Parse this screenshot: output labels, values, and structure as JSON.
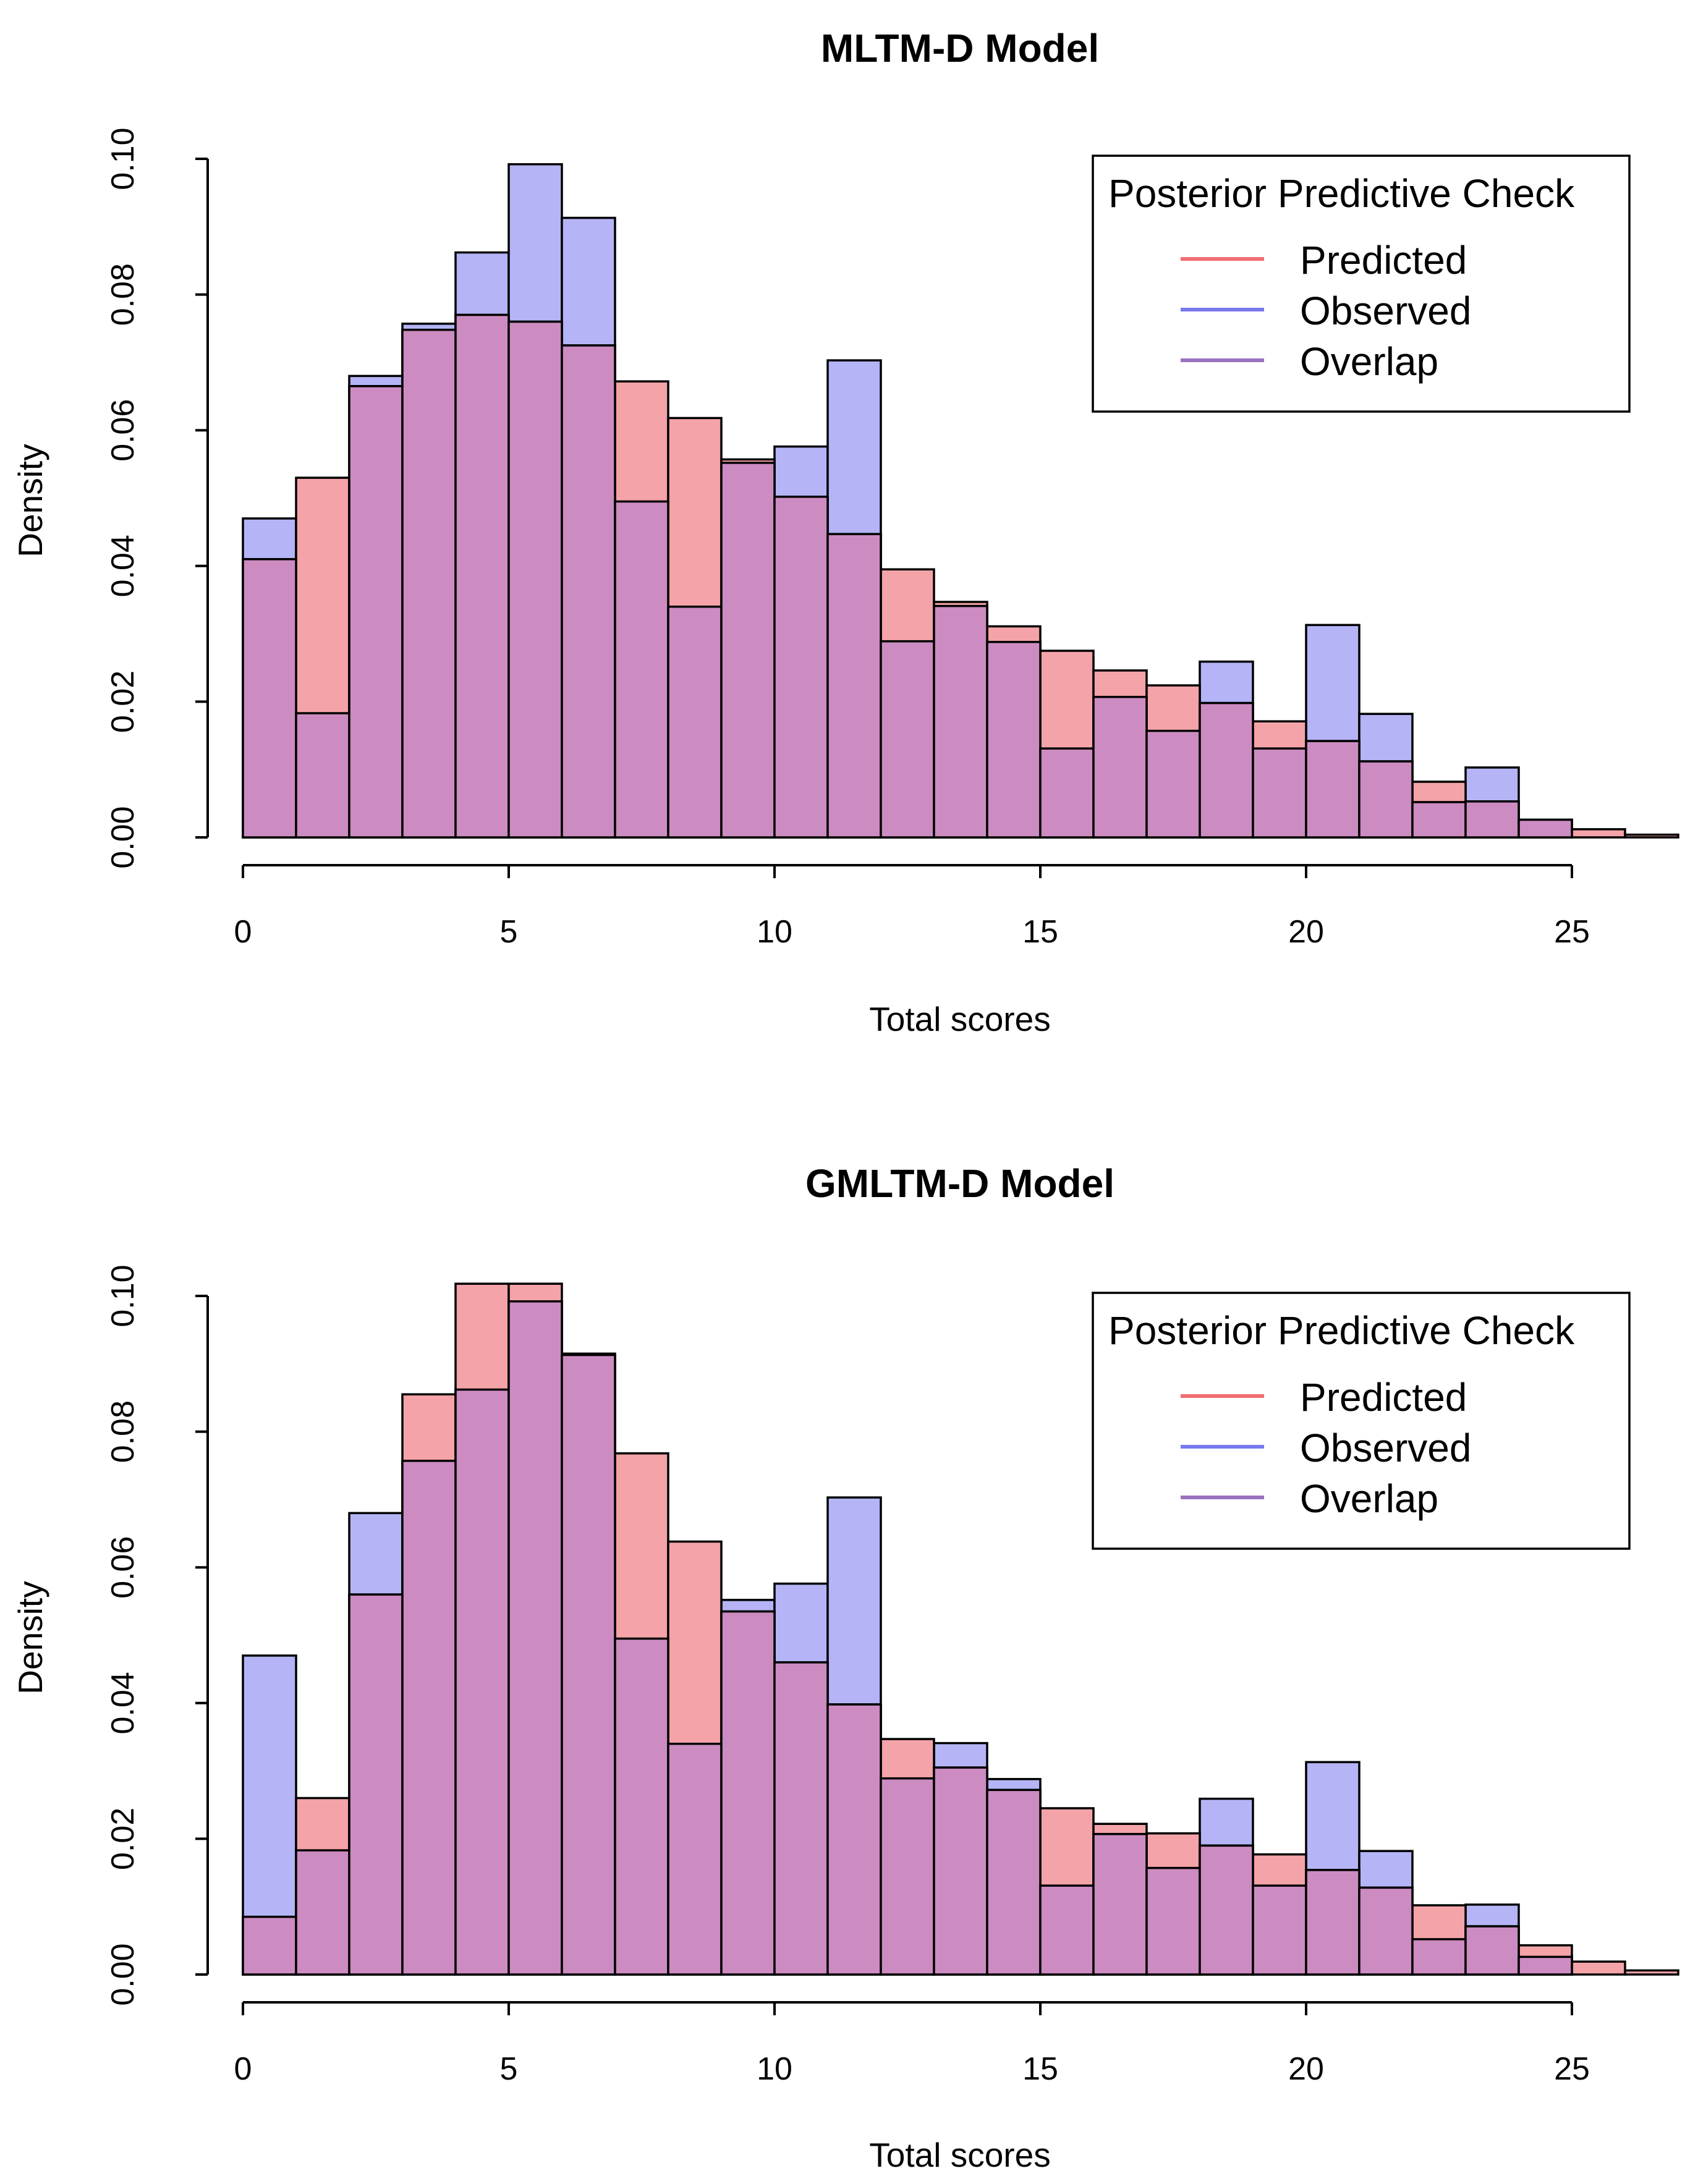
{
  "colors": {
    "predicted": "#f4a3a8",
    "observed": "#b4b4f6",
    "overlap": "#cc8cc1",
    "predicted_line": "#f06e72",
    "observed_line": "#7878ee",
    "overlap_line": "#9a72bf"
  },
  "chart_data": [
    {
      "type": "bar",
      "title": "MLTM-D Model",
      "xlabel": "Total scores",
      "ylabel": "Density",
      "xlim": [
        0,
        27
      ],
      "ylim": [
        0,
        0.1
      ],
      "bin_width": 1,
      "x_ticks": [
        "0",
        "5",
        "10",
        "15",
        "20",
        "25"
      ],
      "y_ticks": [
        "0.00",
        "0.02",
        "0.04",
        "0.06",
        "0.08",
        "0.10"
      ],
      "legend": {
        "title": "Posterior Predictive Check",
        "position": "top-right",
        "items": [
          "Predicted",
          "Observed",
          "Overlap"
        ]
      },
      "series": [
        {
          "name": "Predicted",
          "values": [
            0.041,
            0.053,
            0.0665,
            0.0748,
            0.077,
            0.076,
            0.0725,
            0.0672,
            0.0618,
            0.0557,
            0.0502,
            0.0447,
            0.0395,
            0.0347,
            0.0311,
            0.0275,
            0.0246,
            0.0224,
            0.0198,
            0.0171,
            0.0142,
            0.0112,
            0.0082,
            0.0053,
            0.0026,
            0.0012,
            0.0004
          ]
        },
        {
          "name": "Observed",
          "values": [
            0.047,
            0.0183,
            0.068,
            0.0757,
            0.0862,
            0.0992,
            0.0913,
            0.0495,
            0.034,
            0.0552,
            0.0576,
            0.0703,
            0.0289,
            0.0341,
            0.0288,
            0.0131,
            0.0207,
            0.0157,
            0.0259,
            0.0131,
            0.0313,
            0.0182,
            0.0052,
            0.0103,
            0.0026,
            0,
            0
          ]
        }
      ]
    },
    {
      "type": "bar",
      "title": "GMLTM-D Model",
      "xlabel": "Total scores",
      "ylabel": "Density",
      "xlim": [
        0,
        27
      ],
      "ylim": [
        0,
        0.1
      ],
      "bin_width": 1,
      "x_ticks": [
        "0",
        "5",
        "10",
        "15",
        "20",
        "25"
      ],
      "y_ticks": [
        "0.00",
        "0.02",
        "0.04",
        "0.06",
        "0.08",
        "0.10"
      ],
      "legend": {
        "title": "Posterior Predictive Check",
        "position": "top-right",
        "items": [
          "Predicted",
          "Observed",
          "Overlap"
        ]
      },
      "series": [
        {
          "name": "Predicted",
          "values": [
            0.0085,
            0.026,
            0.056,
            0.0855,
            0.1018,
            0.1018,
            0.0915,
            0.0768,
            0.0638,
            0.0535,
            0.046,
            0.0398,
            0.0347,
            0.0305,
            0.0272,
            0.0245,
            0.0222,
            0.0208,
            0.019,
            0.0177,
            0.0154,
            0.0128,
            0.0102,
            0.0071,
            0.0043,
            0.0019,
            0.0006
          ]
        },
        {
          "name": "Observed",
          "values": [
            0.047,
            0.0183,
            0.068,
            0.0757,
            0.0862,
            0.0992,
            0.0913,
            0.0495,
            0.034,
            0.0552,
            0.0576,
            0.0703,
            0.0289,
            0.0341,
            0.0288,
            0.0131,
            0.0207,
            0.0157,
            0.0259,
            0.0131,
            0.0313,
            0.0182,
            0.0052,
            0.0103,
            0.0026,
            0,
            0
          ]
        }
      ]
    }
  ]
}
